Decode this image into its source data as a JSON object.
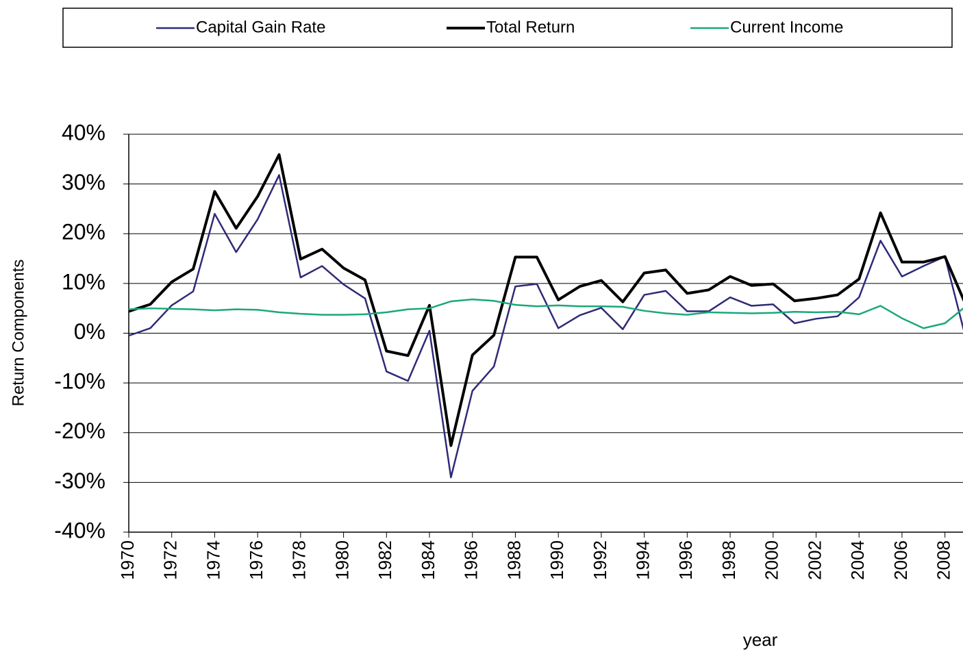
{
  "chart_data": {
    "type": "line",
    "x": [
      1970,
      1971,
      1972,
      1973,
      1974,
      1975,
      1976,
      1977,
      1978,
      1979,
      1980,
      1981,
      1982,
      1983,
      1984,
      1985,
      1986,
      1987,
      1988,
      1989,
      1990,
      1991,
      1992,
      1993,
      1994,
      1995,
      1996,
      1997,
      1998,
      1999,
      2000,
      2001,
      2002,
      2003,
      2004,
      2005,
      2006,
      2007,
      2008,
      2009
    ],
    "series": [
      {
        "name": "Capital Gain Rate",
        "color": "#2e2a78",
        "values": [
          -0.5,
          1,
          5.6,
          8.4,
          24,
          16.3,
          22.9,
          31.8,
          11.2,
          13.5,
          9.8,
          7,
          -7.7,
          -9.6,
          0.5,
          -29,
          -11.6,
          -6.7,
          9.4,
          9.9,
          1,
          3.6,
          5.1,
          0.8,
          7.7,
          8.5,
          4.4,
          4.4,
          7.2,
          5.5,
          5.8,
          2,
          2.9,
          3.4,
          7.2,
          18.6,
          11.4,
          13.5,
          15.4,
          -1.5
        ]
      },
      {
        "name": "Total Return",
        "color": "#000000",
        "values": [
          4.4,
          5.8,
          10.3,
          12.9,
          28.5,
          21.1,
          27.5,
          35.9,
          14.9,
          16.9,
          13.1,
          10.7,
          -3.6,
          -4.5,
          5.6,
          -22.6,
          -4.4,
          -0.4,
          15.3,
          15.3,
          6.7,
          9.4,
          10.6,
          6.3,
          12.1,
          12.7,
          8,
          8.7,
          11.4,
          9.6,
          9.9,
          6.5,
          7,
          7.7,
          10.9,
          24.2,
          14.3,
          14.3,
          15.4,
          5.4
        ]
      },
      {
        "name": "Current Income",
        "color": "#1aa87a",
        "values": [
          4.8,
          5,
          4.9,
          4.8,
          4.6,
          4.8,
          4.7,
          4.2,
          3.9,
          3.7,
          3.7,
          3.8,
          4.2,
          4.8,
          5,
          6.4,
          6.8,
          6.5,
          5.7,
          5.4,
          5.6,
          5.4,
          5.4,
          5.3,
          4.5,
          4,
          3.7,
          4.2,
          4.1,
          4,
          4.1,
          4.3,
          4.2,
          4.3,
          3.8,
          5.5,
          3,
          1,
          2,
          5.5
        ]
      }
    ],
    "xlabel": "year",
    "ylabel": "Return Components",
    "xlim": [
      1970,
      2009
    ],
    "xticks": [
      1970,
      1972,
      1974,
      1976,
      1978,
      1980,
      1982,
      1984,
      1986,
      1988,
      1990,
      1992,
      1994,
      1996,
      1998,
      2000,
      2002,
      2004,
      2006,
      2008
    ],
    "ylim": [
      -40,
      40
    ],
    "yticks": [
      {
        "value": -40,
        "label": "-40%"
      },
      {
        "value": -30,
        "label": "-30%"
      },
      {
        "value": -20,
        "label": "-20%"
      },
      {
        "value": -10,
        "label": "-10%"
      },
      {
        "value": 0,
        "label": "0%"
      },
      {
        "value": 10,
        "label": "10%"
      },
      {
        "value": 20,
        "label": "20%"
      },
      {
        "value": 30,
        "label": "30%"
      },
      {
        "value": 40,
        "label": "40%"
      }
    ],
    "grid": true,
    "legend": "top"
  }
}
